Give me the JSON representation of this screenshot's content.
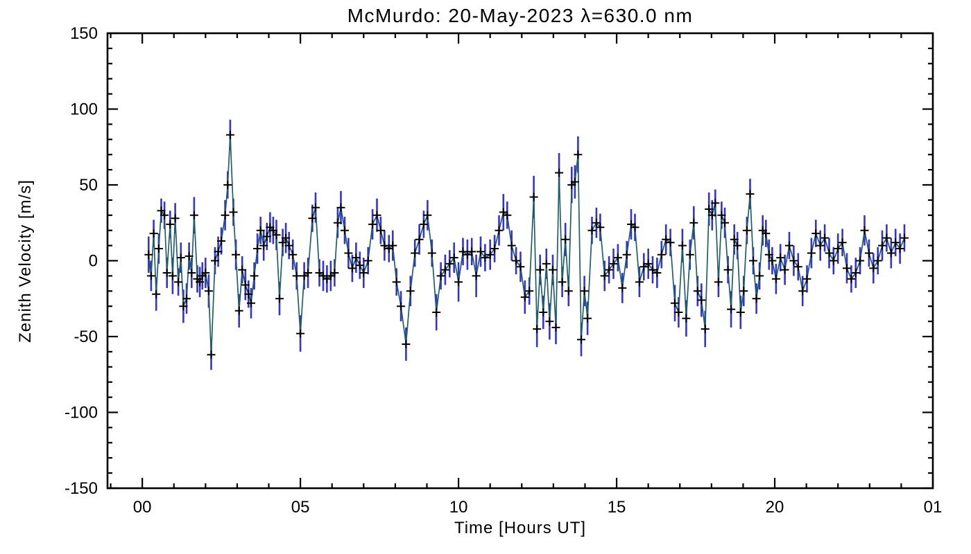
{
  "page": {
    "background": "#ffffff"
  },
  "chart_data": {
    "type": "line",
    "title": "McMurdo: 20-May-2023 λ=630.0 nm",
    "xlabel": "Time [Hours UT]",
    "ylabel": "Zenith Velocity [m/s]",
    "xlim": [
      -1.1,
      25
    ],
    "ylim": [
      -150,
      150
    ],
    "x_minor_step": 1,
    "y_minor_step": 10,
    "grid": false,
    "legend": "none",
    "line_color": "#1f5e68",
    "error_color": "#3434cf",
    "marker_color": "#000000",
    "marker": "plus",
    "x_ticks": [
      {
        "value": 0,
        "label": "00"
      },
      {
        "value": 5,
        "label": "05"
      },
      {
        "value": 10,
        "label": "10"
      },
      {
        "value": 15,
        "label": "15"
      },
      {
        "value": 20,
        "label": "20"
      },
      {
        "value": 25,
        "label": "01"
      }
    ],
    "y_ticks": [
      {
        "value": -150,
        "label": "-150"
      },
      {
        "value": -100,
        "label": "-100"
      },
      {
        "value": -50,
        "label": "-50"
      },
      {
        "value": 0,
        "label": "0"
      },
      {
        "value": 50,
        "label": "50"
      },
      {
        "value": 100,
        "label": "100"
      },
      {
        "value": 150,
        "label": "150"
      }
    ],
    "points_format": [
      "time_hours_ut",
      "zenith_velocity_m_s",
      "error_m_s"
    ],
    "points": [
      [
        0.2,
        4,
        12
      ],
      [
        0.28,
        -10,
        10
      ],
      [
        0.36,
        18,
        9
      ],
      [
        0.44,
        -22,
        11
      ],
      [
        0.52,
        8,
        10
      ],
      [
        0.6,
        33,
        8
      ],
      [
        0.7,
        30,
        9
      ],
      [
        0.78,
        -8,
        10
      ],
      [
        0.88,
        24,
        9
      ],
      [
        0.96,
        -10,
        12
      ],
      [
        1.04,
        28,
        10
      ],
      [
        1.14,
        -14,
        9
      ],
      [
        1.22,
        2,
        10
      ],
      [
        1.3,
        -30,
        11
      ],
      [
        1.4,
        -25,
        10
      ],
      [
        1.48,
        3,
        9
      ],
      [
        1.56,
        -8,
        10
      ],
      [
        1.64,
        30,
        12
      ],
      [
        1.74,
        -12,
        9
      ],
      [
        1.82,
        -14,
        10
      ],
      [
        1.9,
        -10,
        9
      ],
      [
        2.0,
        -8,
        10
      ],
      [
        2.1,
        -20,
        11
      ],
      [
        2.18,
        -62,
        10
      ],
      [
        2.3,
        0,
        9
      ],
      [
        2.4,
        6,
        10
      ],
      [
        2.5,
        13,
        9
      ],
      [
        2.62,
        30,
        10
      ],
      [
        2.7,
        50,
        9
      ],
      [
        2.78,
        83,
        10
      ],
      [
        2.88,
        32,
        9
      ],
      [
        2.96,
        4,
        10
      ],
      [
        3.06,
        -33,
        11
      ],
      [
        3.16,
        -6,
        9
      ],
      [
        3.26,
        -16,
        10
      ],
      [
        3.36,
        -22,
        9
      ],
      [
        3.44,
        -28,
        10
      ],
      [
        3.54,
        -10,
        9
      ],
      [
        3.64,
        8,
        10
      ],
      [
        3.74,
        20,
        9
      ],
      [
        3.84,
        10,
        10
      ],
      [
        3.94,
        16,
        9
      ],
      [
        4.04,
        22,
        10
      ],
      [
        4.14,
        20,
        9
      ],
      [
        4.24,
        17,
        10
      ],
      [
        4.34,
        -25,
        11
      ],
      [
        4.44,
        12,
        9
      ],
      [
        4.54,
        15,
        10
      ],
      [
        4.64,
        10,
        9
      ],
      [
        4.76,
        4,
        10
      ],
      [
        4.88,
        -10,
        9
      ],
      [
        5.0,
        -48,
        12
      ],
      [
        5.12,
        -10,
        9
      ],
      [
        5.24,
        -8,
        10
      ],
      [
        5.38,
        28,
        9
      ],
      [
        5.48,
        35,
        10
      ],
      [
        5.6,
        -8,
        9
      ],
      [
        5.72,
        -10,
        10
      ],
      [
        5.84,
        -12,
        9
      ],
      [
        5.96,
        -10,
        10
      ],
      [
        6.08,
        -8,
        9
      ],
      [
        6.18,
        25,
        10
      ],
      [
        6.28,
        35,
        11
      ],
      [
        6.4,
        20,
        9
      ],
      [
        6.52,
        5,
        10
      ],
      [
        6.64,
        -5,
        9
      ],
      [
        6.76,
        2,
        10
      ],
      [
        6.88,
        -3,
        9
      ],
      [
        7.0,
        -8,
        10
      ],
      [
        7.14,
        0,
        9
      ],
      [
        7.28,
        24,
        10
      ],
      [
        7.42,
        30,
        11
      ],
      [
        7.54,
        20,
        9
      ],
      [
        7.66,
        10,
        10
      ],
      [
        7.8,
        8,
        9
      ],
      [
        7.92,
        10,
        10
      ],
      [
        8.04,
        -14,
        9
      ],
      [
        8.18,
        -30,
        10
      ],
      [
        8.34,
        -55,
        11
      ],
      [
        8.48,
        -20,
        10
      ],
      [
        8.62,
        5,
        9
      ],
      [
        8.76,
        14,
        10
      ],
      [
        8.9,
        24,
        9
      ],
      [
        9.02,
        30,
        10
      ],
      [
        9.16,
        5,
        9
      ],
      [
        9.3,
        -34,
        12
      ],
      [
        9.44,
        -10,
        9
      ],
      [
        9.58,
        -6,
        10
      ],
      [
        9.72,
        -2,
        9
      ],
      [
        9.86,
        2,
        10
      ],
      [
        10.0,
        -14,
        13
      ],
      [
        10.14,
        6,
        9
      ],
      [
        10.28,
        4,
        10
      ],
      [
        10.42,
        6,
        9
      ],
      [
        10.56,
        -10,
        14
      ],
      [
        10.7,
        6,
        10
      ],
      [
        10.84,
        2,
        9
      ],
      [
        11.0,
        4,
        10
      ],
      [
        11.14,
        8,
        9
      ],
      [
        11.28,
        20,
        10
      ],
      [
        11.42,
        32,
        12
      ],
      [
        11.54,
        30,
        9
      ],
      [
        11.68,
        10,
        10
      ],
      [
        11.82,
        0,
        9
      ],
      [
        11.96,
        -4,
        10
      ],
      [
        12.1,
        -24,
        11
      ],
      [
        12.24,
        -20,
        9
      ],
      [
        12.38,
        42,
        14
      ],
      [
        12.48,
        -45,
        12
      ],
      [
        12.58,
        -6,
        10
      ],
      [
        12.68,
        -34,
        11
      ],
      [
        12.78,
        -2,
        10
      ],
      [
        12.88,
        -40,
        12
      ],
      [
        12.98,
        -6,
        10
      ],
      [
        13.08,
        -44,
        11
      ],
      [
        13.18,
        58,
        13
      ],
      [
        13.28,
        -14,
        10
      ],
      [
        13.38,
        14,
        11
      ],
      [
        13.48,
        -20,
        10
      ],
      [
        13.58,
        50,
        12
      ],
      [
        13.68,
        52,
        11
      ],
      [
        13.78,
        70,
        12
      ],
      [
        13.88,
        -52,
        11
      ],
      [
        13.98,
        -20,
        10
      ],
      [
        14.08,
        -38,
        11
      ],
      [
        14.22,
        20,
        9
      ],
      [
        14.36,
        25,
        10
      ],
      [
        14.48,
        22,
        9
      ],
      [
        14.62,
        -10,
        10
      ],
      [
        14.76,
        -6,
        9
      ],
      [
        14.9,
        -2,
        10
      ],
      [
        15.04,
        2,
        9
      ],
      [
        15.18,
        -18,
        10
      ],
      [
        15.32,
        4,
        9
      ],
      [
        15.46,
        24,
        10
      ],
      [
        15.58,
        22,
        9
      ],
      [
        15.72,
        -14,
        10
      ],
      [
        15.86,
        -4,
        9
      ],
      [
        16.0,
        -2,
        10
      ],
      [
        16.14,
        -6,
        9
      ],
      [
        16.28,
        -8,
        10
      ],
      [
        16.42,
        4,
        9
      ],
      [
        16.56,
        14,
        10
      ],
      [
        16.7,
        12,
        9
      ],
      [
        16.84,
        -28,
        12
      ],
      [
        16.96,
        -34,
        10
      ],
      [
        17.08,
        10,
        11
      ],
      [
        17.2,
        -38,
        12
      ],
      [
        17.32,
        4,
        10
      ],
      [
        17.44,
        25,
        11
      ],
      [
        17.56,
        -20,
        10
      ],
      [
        17.68,
        -26,
        11
      ],
      [
        17.8,
        -45,
        12
      ],
      [
        17.92,
        34,
        11
      ],
      [
        18.02,
        30,
        10
      ],
      [
        18.12,
        38,
        9
      ],
      [
        18.22,
        -14,
        10
      ],
      [
        18.32,
        30,
        9
      ],
      [
        18.42,
        25,
        10
      ],
      [
        18.52,
        -6,
        9
      ],
      [
        18.62,
        -32,
        12
      ],
      [
        18.72,
        14,
        10
      ],
      [
        18.82,
        10,
        9
      ],
      [
        18.92,
        -34,
        11
      ],
      [
        19.02,
        -20,
        10
      ],
      [
        19.12,
        20,
        9
      ],
      [
        19.22,
        44,
        10
      ],
      [
        19.32,
        0,
        9
      ],
      [
        19.42,
        -25,
        10
      ],
      [
        19.52,
        -10,
        9
      ],
      [
        19.62,
        20,
        10
      ],
      [
        19.72,
        18,
        9
      ],
      [
        19.82,
        4,
        10
      ],
      [
        19.92,
        0,
        9
      ],
      [
        20.04,
        -12,
        10
      ],
      [
        20.18,
        2,
        9
      ],
      [
        20.32,
        -6,
        10
      ],
      [
        20.46,
        10,
        9
      ],
      [
        20.6,
        0,
        10
      ],
      [
        20.74,
        -4,
        9
      ],
      [
        20.88,
        -20,
        10
      ],
      [
        21.02,
        -12,
        9
      ],
      [
        21.16,
        5,
        10
      ],
      [
        21.3,
        18,
        9
      ],
      [
        21.44,
        10,
        10
      ],
      [
        21.58,
        15,
        9
      ],
      [
        21.72,
        5,
        10
      ],
      [
        21.86,
        0,
        9
      ],
      [
        22.0,
        8,
        10
      ],
      [
        22.14,
        12,
        9
      ],
      [
        22.28,
        -5,
        10
      ],
      [
        22.42,
        -12,
        9
      ],
      [
        22.56,
        -8,
        10
      ],
      [
        22.7,
        0,
        9
      ],
      [
        22.84,
        20,
        10
      ],
      [
        22.98,
        5,
        9
      ],
      [
        23.12,
        -5,
        10
      ],
      [
        23.26,
        0,
        9
      ],
      [
        23.4,
        10,
        10
      ],
      [
        23.54,
        15,
        9
      ],
      [
        23.68,
        5,
        10
      ],
      [
        23.82,
        12,
        9
      ],
      [
        23.96,
        8,
        10
      ],
      [
        24.1,
        15,
        9
      ]
    ]
  }
}
